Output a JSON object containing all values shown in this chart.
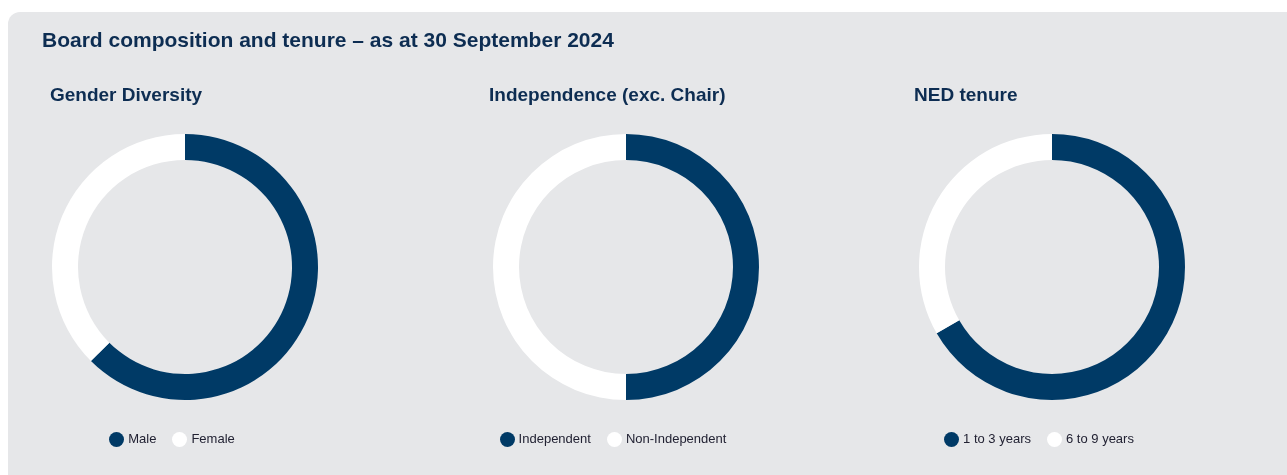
{
  "chart_data": [
    {
      "type": "donut",
      "title": "Gender Diversity",
      "annotations": [
        "Board composition and tenure – as at 30 September 2024"
      ],
      "categories": [
        "Male",
        "Female"
      ],
      "values": [
        62.5,
        37.5
      ],
      "colors": [
        "#003a66",
        "#ffffff"
      ],
      "legend": "bottom"
    },
    {
      "type": "donut",
      "title": "Independence (exc. Chair)",
      "categories": [
        "Independent",
        "Non-Independent"
      ],
      "values": [
        50,
        50
      ],
      "colors": [
        "#003a66",
        "#ffffff"
      ],
      "legend": "bottom"
    },
    {
      "type": "donut",
      "title": "NED tenure",
      "categories": [
        "1 to 3 years",
        "6 to 9 years"
      ],
      "values": [
        66.7,
        33.3
      ],
      "colors": [
        "#003a66",
        "#ffffff"
      ],
      "legend": "bottom"
    }
  ]
}
